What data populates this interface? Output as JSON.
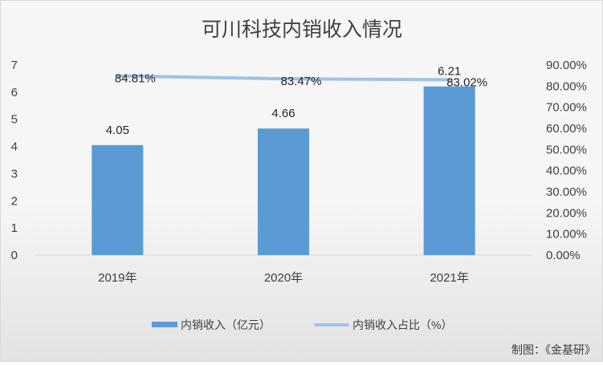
{
  "chart_data": {
    "type": "bar",
    "title": "可川科技内销收入情况",
    "categories": [
      "2019年",
      "2020年",
      "2021年"
    ],
    "series": [
      {
        "name": "内销收入（亿元）",
        "type": "bar",
        "axis": "left",
        "values": [
          4.05,
          4.66,
          6.21
        ],
        "labels": [
          "4.05",
          "4.66",
          "6.21"
        ],
        "color": "#5b9bd5"
      },
      {
        "name": "内销收入占比（%）",
        "type": "line",
        "axis": "right",
        "values": [
          84.81,
          83.47,
          83.02
        ],
        "labels": [
          "84.81%",
          "83.47%",
          "83.02%"
        ],
        "color": "#9dc3e6"
      }
    ],
    "y_left": {
      "min": 0,
      "max": 7,
      "ticks": [
        "0",
        "1",
        "2",
        "3",
        "4",
        "5",
        "6",
        "7"
      ]
    },
    "y_right": {
      "min": 0,
      "max": 90,
      "ticks": [
        "0.00%",
        "10.00%",
        "20.00%",
        "30.00%",
        "40.00%",
        "50.00%",
        "60.00%",
        "70.00%",
        "80.00%",
        "90.00%"
      ]
    },
    "grid": false,
    "legend": "bottom"
  },
  "credit": "制图：《金基研》"
}
